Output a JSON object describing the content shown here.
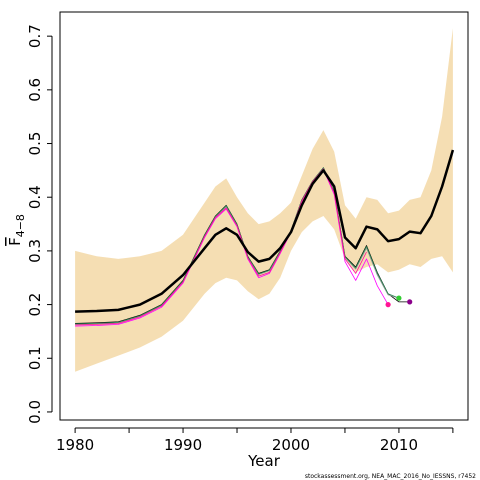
{
  "chart_data": {
    "type": "line",
    "title": "",
    "xlabel": "Year",
    "ylabel": "F",
    "ylabel_subscript": "4−8",
    "xlim": [
      1978.6,
      2016.4
    ],
    "ylim": [
      -0.015,
      0.745
    ],
    "x_ticks": [
      1980,
      1990,
      2000,
      2010
    ],
    "y_ticks": [
      0.0,
      0.1,
      0.2,
      0.3,
      0.4,
      0.5,
      0.6,
      0.7
    ],
    "y_tick_labels": [
      "0.0",
      "0.1",
      "0.2",
      "0.3",
      "0.4",
      "0.5",
      "0.6",
      "0.7"
    ],
    "grid": false,
    "band": {
      "color": "#f5deb3",
      "x": [
        1980,
        1982,
        1984,
        1986,
        1988,
        1990,
        1992,
        1993,
        1994,
        1995,
        1996,
        1997,
        1998,
        1999,
        2000,
        2001,
        2002,
        2003,
        2004,
        2005,
        2006,
        2007,
        2008,
        2009,
        2010,
        2011,
        2012,
        2013,
        2014,
        2015
      ],
      "upper": [
        0.3,
        0.29,
        0.285,
        0.29,
        0.3,
        0.33,
        0.39,
        0.42,
        0.435,
        0.4,
        0.37,
        0.35,
        0.355,
        0.37,
        0.39,
        0.44,
        0.49,
        0.525,
        0.485,
        0.385,
        0.36,
        0.4,
        0.395,
        0.37,
        0.375,
        0.395,
        0.4,
        0.45,
        0.55,
        0.715
      ],
      "lower": [
        0.075,
        0.09,
        0.105,
        0.12,
        0.14,
        0.17,
        0.22,
        0.24,
        0.25,
        0.245,
        0.225,
        0.21,
        0.22,
        0.25,
        0.3,
        0.335,
        0.355,
        0.365,
        0.34,
        0.285,
        0.26,
        0.27,
        0.275,
        0.26,
        0.265,
        0.275,
        0.27,
        0.285,
        0.29,
        0.26
      ]
    },
    "series": [
      {
        "color": "#000000",
        "width": 2.5,
        "x": [
          1980,
          1982,
          1984,
          1986,
          1988,
          1990,
          1992,
          1993,
          1994,
          1995,
          1996,
          1997,
          1998,
          1999,
          2000,
          2001,
          2002,
          2003,
          2004,
          2005,
          2006,
          2007,
          2008,
          2009,
          2010,
          2011,
          2012,
          2013,
          2014,
          2015
        ],
        "values": [
          0.187,
          0.188,
          0.19,
          0.2,
          0.22,
          0.255,
          0.305,
          0.33,
          0.342,
          0.33,
          0.298,
          0.28,
          0.285,
          0.305,
          0.335,
          0.385,
          0.425,
          0.45,
          0.42,
          0.325,
          0.305,
          0.345,
          0.34,
          0.318,
          0.322,
          0.336,
          0.333,
          0.365,
          0.42,
          0.488
        ]
      },
      {
        "color": "#000000",
        "width": 0.8,
        "x": [
          1980,
          1982,
          1984,
          1986,
          1988,
          1990,
          1992,
          1993,
          1994,
          1995,
          1996,
          1997,
          1998,
          1999,
          2000,
          2001,
          2002,
          2003,
          2004,
          2005,
          2006,
          2007,
          2008,
          2009,
          2010,
          2011
        ],
        "values": [
          0.165,
          0.166,
          0.168,
          0.18,
          0.2,
          0.245,
          0.33,
          0.365,
          0.385,
          0.35,
          0.29,
          0.258,
          0.265,
          0.3,
          0.338,
          0.395,
          0.43,
          0.455,
          0.41,
          0.29,
          0.27,
          0.31,
          0.26,
          0.22,
          0.205,
          0.205
        ]
      },
      {
        "color": "#999999",
        "width": 0.8,
        "x": [
          1980,
          1982,
          1984,
          1986,
          1988,
          1990,
          1992,
          1993,
          1994,
          1995,
          1996,
          1997,
          1998,
          1999,
          2000,
          2001,
          2002,
          2003,
          2004,
          2005,
          2006,
          2007,
          2008,
          2009,
          2010
        ],
        "values": [
          0.163,
          0.164,
          0.166,
          0.178,
          0.198,
          0.243,
          0.328,
          0.363,
          0.382,
          0.348,
          0.288,
          0.256,
          0.263,
          0.298,
          0.337,
          0.394,
          0.43,
          0.454,
          0.41,
          0.288,
          0.266,
          0.305,
          0.255,
          0.218,
          0.212
        ]
      },
      {
        "color": "#2e8b57",
        "width": 0.8,
        "x": [
          1980,
          1982,
          1984,
          1986,
          1988,
          1990,
          1992,
          1993,
          1994,
          1995,
          1996,
          1997,
          1998,
          1999,
          2000,
          2001,
          2002,
          2003,
          2004,
          2005,
          2006,
          2007,
          2008,
          2009,
          2010
        ],
        "values": [
          0.164,
          0.165,
          0.167,
          0.179,
          0.199,
          0.244,
          0.329,
          0.364,
          0.384,
          0.349,
          0.289,
          0.257,
          0.264,
          0.299,
          0.337,
          0.395,
          0.43,
          0.455,
          0.41,
          0.289,
          0.268,
          0.308,
          0.258,
          0.22,
          0.212
        ]
      },
      {
        "color": "#ff00ff",
        "width": 0.8,
        "x": [
          1980,
          1982,
          1984,
          1986,
          1988,
          1990,
          1992,
          1993,
          1994,
          1995,
          1996,
          1997,
          1998,
          1999,
          2000,
          2001,
          2002,
          2003,
          2004,
          2005,
          2006,
          2007,
          2008,
          2009
        ],
        "values": [
          0.16,
          0.161,
          0.163,
          0.175,
          0.195,
          0.24,
          0.325,
          0.36,
          0.378,
          0.345,
          0.285,
          0.25,
          0.258,
          0.295,
          0.335,
          0.392,
          0.428,
          0.452,
          0.405,
          0.28,
          0.245,
          0.285,
          0.235,
          0.2
        ]
      },
      {
        "color": "#ff1493",
        "width": 0.8,
        "x": [
          1980,
          1982,
          1984,
          1986,
          1988,
          1990,
          1992,
          1993,
          1994,
          1995,
          1996,
          1997,
          1998,
          1999,
          2000,
          2001,
          2002,
          2003,
          2004,
          2005,
          2006,
          2007
        ],
        "values": [
          0.162,
          0.163,
          0.165,
          0.177,
          0.197,
          0.242,
          0.327,
          0.362,
          0.38,
          0.347,
          0.287,
          0.253,
          0.26,
          0.297,
          0.336,
          0.393,
          0.429,
          0.453,
          0.408,
          0.285,
          0.258,
          0.298
        ]
      }
    ],
    "endpoints": [
      {
        "x": 2009,
        "y": 0.2,
        "color": "#ff1493"
      },
      {
        "x": 2010,
        "y": 0.212,
        "color": "#33cc33"
      },
      {
        "x": 2011,
        "y": 0.205,
        "color": "#8b008b"
      }
    ],
    "credit": "stockassessment.org, NEA_MAC_2016_No_IESSNS, r7452"
  }
}
